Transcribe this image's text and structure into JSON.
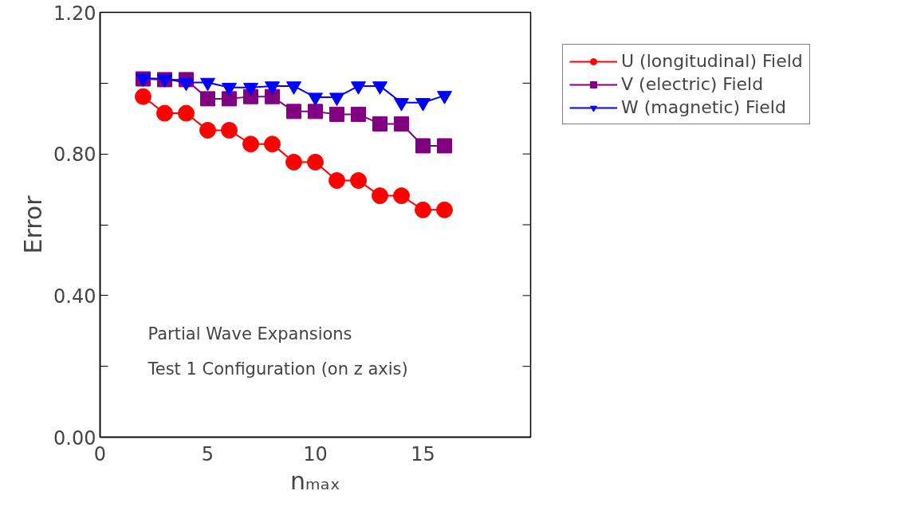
{
  "chart_data": {
    "type": "line",
    "xlabel": "nₘₐₓ",
    "ylabel": "Error",
    "x": [
      2,
      3,
      4,
      5,
      6,
      7,
      8,
      9,
      10,
      11,
      12,
      13,
      14,
      15,
      16
    ],
    "series": [
      {
        "name": "U (longitudinal) Field",
        "color": "#ff0000",
        "marker": "circle",
        "values": [
          0.962,
          0.915,
          0.915,
          0.867,
          0.867,
          0.828,
          0.828,
          0.777,
          0.777,
          0.725,
          0.725,
          0.682,
          0.682,
          0.642,
          0.642
        ]
      },
      {
        "name": "V (electric) Field",
        "color": "#800080",
        "marker": "square",
        "values": [
          1.012,
          1.01,
          1.01,
          0.956,
          0.956,
          0.962,
          0.962,
          0.92,
          0.92,
          0.912,
          0.912,
          0.885,
          0.885,
          0.823,
          0.823
        ]
      },
      {
        "name": "W (magnetic) Field",
        "color": "#0000ff",
        "marker": "triangle",
        "values": [
          1.014,
          1.012,
          1.002,
          1.002,
          0.988,
          0.988,
          0.992,
          0.992,
          0.96,
          0.96,
          0.992,
          0.992,
          0.945,
          0.945,
          0.965
        ]
      }
    ],
    "xlim": [
      0,
      20
    ],
    "xticks": [
      0,
      5,
      10,
      15
    ],
    "ylim": [
      0,
      1.2
    ],
    "yticks": [
      {
        "value": 0,
        "label": "0.00"
      },
      {
        "value": 0.2,
        "label": null
      },
      {
        "value": 0.4,
        "label": "0.40"
      },
      {
        "value": 0.6,
        "label": null
      },
      {
        "value": 0.8,
        "label": "0.80"
      },
      {
        "value": 1.0,
        "label": null
      },
      {
        "value": 1.2,
        "label": "1.20"
      }
    ],
    "annotations": [
      "Partial Wave Expansions",
      "Test 1 Configuration (on z axis)"
    ],
    "legend": "top right",
    "grid": false,
    "line_style": "solid"
  }
}
